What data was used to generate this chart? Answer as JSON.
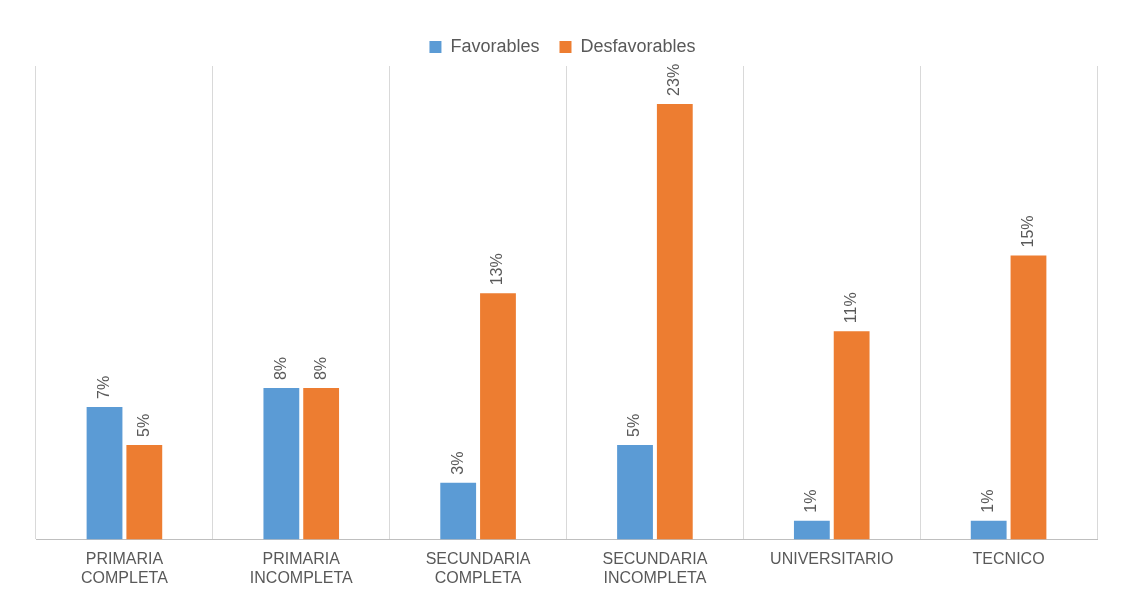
{
  "chart_data": {
    "type": "bar",
    "categories": [
      "PRIMARIA COMPLETA",
      "PRIMARIA INCOMPLETA",
      "SECUNDARIA COMPLETA",
      "SECUNDARIA INCOMPLETA",
      "UNIVERSITARIO",
      "TECNICO"
    ],
    "series": [
      {
        "name": "Favorables",
        "color": "#5b9bd5",
        "values": [
          7,
          8,
          3,
          5,
          1,
          1
        ],
        "value_labels": [
          "7%",
          "8%",
          "3%",
          "5%",
          "1%",
          "1%"
        ]
      },
      {
        "name": "Desfavorables",
        "color": "#ed7d31",
        "values": [
          5,
          8,
          13,
          23,
          11,
          15
        ],
        "value_labels": [
          "5%",
          "8%",
          "13%",
          "23%",
          "11%",
          "15%"
        ]
      }
    ],
    "legend": "top",
    "grid": "x",
    "tick_labels": "x"
  }
}
